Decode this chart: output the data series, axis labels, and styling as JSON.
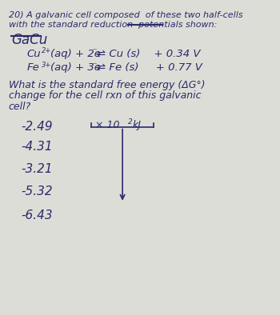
{
  "background_color": "#ddddd8",
  "title_line1": "20) A galvanic cell composed  of these two half-cells",
  "title_line2": "with the standard reduction  potentials shown:",
  "font_color": "#2a2a6a",
  "choices": [
    "-2.49",
    "-4.31",
    "-3.21",
    "-5.32",
    "-6.43"
  ]
}
